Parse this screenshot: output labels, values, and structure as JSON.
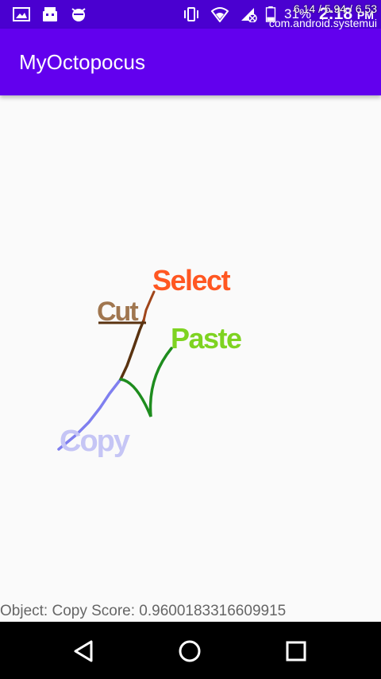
{
  "status_bar": {
    "icons_left": [
      "image-icon",
      "android-robot-icon",
      "android-debug-icon"
    ],
    "icons_right": [
      "vibrate-icon",
      "wifi-icon",
      "no-sim-icon",
      "battery-icon"
    ],
    "battery": "31%",
    "time": "2:18",
    "ampm": "PM",
    "colors": {
      "background": "#4a00d0",
      "text": "#ffffff"
    }
  },
  "overlay": {
    "perf": "6.14 / 5.94 / 6.53",
    "package": "com.android.systemui"
  },
  "app_bar": {
    "title": "MyOctopocus",
    "color": "#6200ee"
  },
  "gesture_labels": [
    {
      "text": "Select",
      "color": "#ff5722"
    },
    {
      "text": "Cut",
      "color": "#a0764f"
    },
    {
      "text": "Paste",
      "color": "#7ed321"
    },
    {
      "text": "Copy",
      "color": "#c5c5f5"
    }
  ],
  "gesture_path_colors": {
    "select": "#a0451a",
    "cut": "#5a3310",
    "paste": "#1e8c1e",
    "copy": "#7f7fef"
  },
  "result": {
    "text": "Object: Copy Score: 0.9600183316609915"
  },
  "nav_bar": {
    "buttons": [
      "back-icon",
      "home-icon",
      "recents-icon"
    ]
  }
}
